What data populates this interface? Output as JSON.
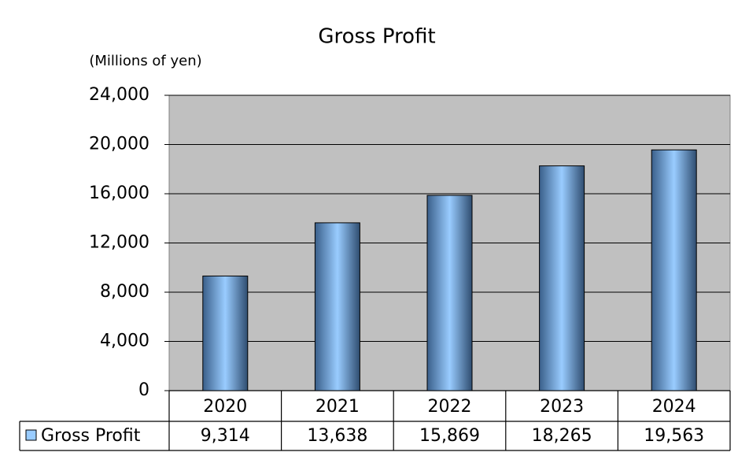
{
  "chart_data": {
    "type": "bar",
    "title": "Gross Profit",
    "y_label": "(Millions of yen)",
    "categories": [
      "2020",
      "2021",
      "2022",
      "2023",
      "2024"
    ],
    "series": [
      {
        "name": "Gross Profit",
        "color": "#99ccff",
        "values": [
          9314,
          13638,
          15869,
          18265,
          19563
        ],
        "value_labels": [
          "9,314",
          "13,638",
          "15,869",
          "18,265",
          "19,563"
        ]
      }
    ],
    "ylim": [
      0,
      24000
    ],
    "yticks": [
      0,
      {
        "value": 4000,
        "label": "4,000"
      },
      {
        "value": 8000,
        "label": "8,000"
      },
      {
        "value": 12000,
        "label": "12,000"
      },
      {
        "value": 16000,
        "label": "16,000"
      },
      {
        "value": 20000,
        "label": "20,000"
      },
      {
        "value": 24000,
        "label": "24,000"
      }
    ],
    "grid": true
  }
}
